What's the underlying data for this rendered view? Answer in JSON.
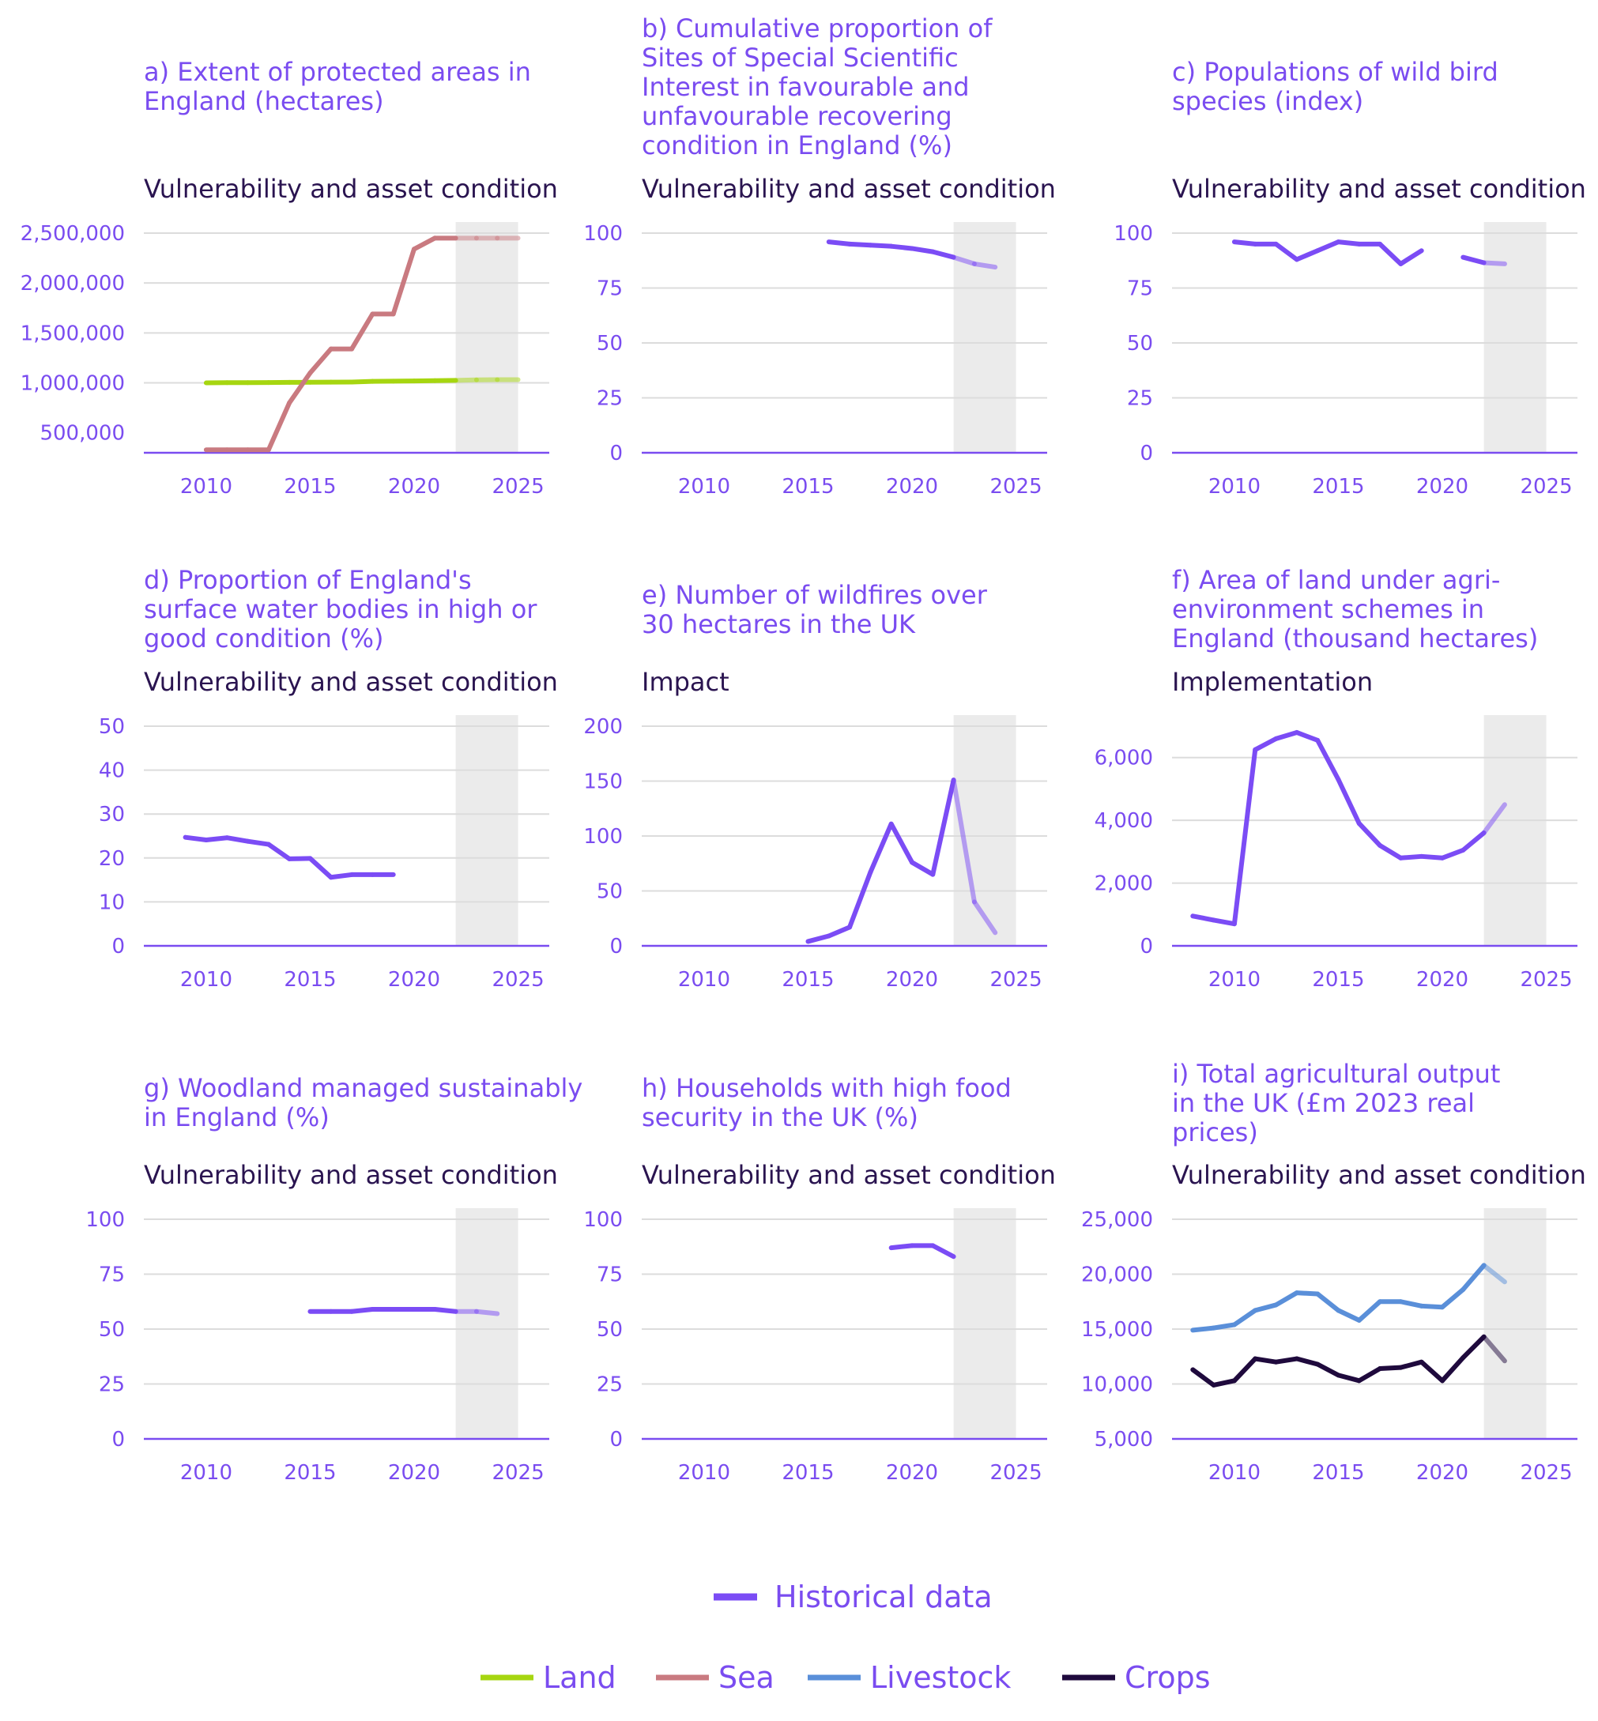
{
  "legend": {
    "historical": {
      "label": "Historical data",
      "color": "#7b4cf5"
    },
    "series": [
      {
        "label": "Land",
        "color": "#a6d610"
      },
      {
        "label": "Sea",
        "color": "#c97a80"
      },
      {
        "label": "Livestock",
        "color": "#5a8fd9"
      },
      {
        "label": "Crops",
        "color": "#1f0a3d"
      }
    ]
  },
  "colors": {
    "primary": "#7b4cf5",
    "axis": "#7a4cf0",
    "grid": "#dcdcdc",
    "projection_band": "#ebebeb"
  },
  "chart_data": [
    {
      "id": "a",
      "type": "line",
      "title": "a) Extent of protected areas in England (hectares)",
      "category": "Vulnerability and asset condition",
      "xlim": [
        2007,
        2026.5
      ],
      "ylim": [
        300000,
        2500000
      ],
      "yticks": [
        500000,
        1000000,
        1500000,
        2000000,
        2500000
      ],
      "ytick_labels": [
        "500,000",
        "1,000,000",
        "1,500,000",
        "2,000,000",
        "2,500,000"
      ],
      "xticks": [
        2010,
        2015,
        2020,
        2025
      ],
      "xtick_labels": [
        "2010",
        "2015",
        "2020",
        "2025"
      ],
      "shade": [
        2022,
        2025
      ],
      "faded_from": 2022,
      "series": [
        {
          "name": "Land",
          "color": "#a6d610",
          "x": [
            2010,
            2011,
            2012,
            2013,
            2014,
            2015,
            2016,
            2017,
            2018,
            2019,
            2020,
            2021,
            2022,
            2023,
            2024,
            2025
          ],
          "y": [
            1000000,
            1002000,
            1002000,
            1003000,
            1005000,
            1006000,
            1007000,
            1008000,
            1015000,
            1017000,
            1019000,
            1022000,
            1025000,
            1030000,
            1032000,
            1032000
          ]
        },
        {
          "name": "Sea",
          "color": "#c97a80",
          "x": [
            2010,
            2011,
            2012,
            2013,
            2014,
            2015,
            2016,
            2017,
            2018,
            2019,
            2020,
            2021,
            2022,
            2023,
            2024,
            2025
          ],
          "y": [
            330000,
            330000,
            330000,
            330000,
            800000,
            1100000,
            1340000,
            1340000,
            1690000,
            1690000,
            2340000,
            2450000,
            2450000,
            2450000,
            2450000,
            2450000
          ]
        }
      ]
    },
    {
      "id": "b",
      "type": "line",
      "title": "b) Cumulative proportion of Sites of Special Scientific Interest in favourable and unfavourable recovering condition in England (%)",
      "category": "Vulnerability and asset condition",
      "xlim": [
        2007,
        2026.5
      ],
      "ylim": [
        0,
        100
      ],
      "yticks": [
        0,
        25,
        50,
        75,
        100
      ],
      "ytick_labels": [
        "0",
        "25",
        "50",
        "75",
        "100"
      ],
      "xticks": [
        2010,
        2015,
        2020,
        2025
      ],
      "xtick_labels": [
        "2010",
        "2015",
        "2020",
        "2025"
      ],
      "shade": [
        2022,
        2025
      ],
      "faded_from": 2022,
      "series": [
        {
          "color": "#7b4cf5",
          "x": [
            2016,
            2017,
            2018,
            2019,
            2020,
            2021,
            2022,
            2023,
            2024
          ],
          "y": [
            96,
            95,
            94.5,
            94,
            93,
            91.5,
            89,
            86,
            84.5
          ]
        }
      ]
    },
    {
      "id": "c",
      "type": "line",
      "title": "c) Populations of wild bird species (index)",
      "category": "Vulnerability and asset condition",
      "xlim": [
        2007,
        2026.5
      ],
      "ylim": [
        0,
        100
      ],
      "yticks": [
        0,
        25,
        50,
        75,
        100
      ],
      "ytick_labels": [
        "0",
        "25",
        "50",
        "75",
        "100"
      ],
      "xticks": [
        2010,
        2015,
        2020,
        2025
      ],
      "xtick_labels": [
        "2010",
        "2015",
        "2020",
        "2025"
      ],
      "shade": [
        2022,
        2025
      ],
      "faded_from": 2022,
      "series": [
        {
          "color": "#7b4cf5",
          "x": [
            2010,
            2011,
            2012,
            2013,
            2014,
            2015,
            2016,
            2017,
            2018,
            2019,
            2020,
            2021,
            2022,
            2023
          ],
          "y": [
            96,
            95,
            95,
            88,
            92,
            96,
            95,
            95,
            86,
            92,
            null,
            89,
            86.5,
            86
          ]
        }
      ]
    },
    {
      "id": "d",
      "type": "line",
      "title": "d) Proportion of England's surface water bodies in high or good condition (%)",
      "category": "Vulnerability and asset condition",
      "xlim": [
        2007,
        2026.5
      ],
      "ylim": [
        0,
        50
      ],
      "yticks": [
        0,
        10,
        20,
        30,
        40,
        50
      ],
      "ytick_labels": [
        "0",
        "10",
        "20",
        "30",
        "40",
        "50"
      ],
      "xticks": [
        2010,
        2015,
        2020,
        2025
      ],
      "xtick_labels": [
        "2010",
        "2015",
        "2020",
        "2025"
      ],
      "shade": [
        2022,
        2025
      ],
      "faded_from": 2022,
      "series": [
        {
          "color": "#7b4cf5",
          "x": [
            2009,
            2010,
            2011,
            2012,
            2013,
            2014,
            2015,
            2016,
            2017,
            2018,
            2019
          ],
          "y": [
            24.7,
            24.1,
            24.6,
            23.8,
            23.1,
            19.8,
            19.9,
            15.6,
            16.2,
            16.2,
            16.2
          ]
        }
      ]
    },
    {
      "id": "e",
      "type": "line",
      "title": "e) Number of wildfires over 30 hectares in the UK",
      "category": "Impact",
      "xlim": [
        2007,
        2026.5
      ],
      "ylim": [
        0,
        200
      ],
      "yticks": [
        0,
        50,
        100,
        150,
        200
      ],
      "ytick_labels": [
        "0",
        "50",
        "100",
        "150",
        "200"
      ],
      "xticks": [
        2010,
        2015,
        2020,
        2025
      ],
      "xtick_labels": [
        "2010",
        "2015",
        "2020",
        "2025"
      ],
      "shade": [
        2022,
        2025
      ],
      "faded_from": 2022,
      "series": [
        {
          "color": "#7b4cf5",
          "x": [
            2015,
            2016,
            2017,
            2018,
            2019,
            2020,
            2021,
            2022,
            2023,
            2024
          ],
          "y": [
            4,
            9,
            17,
            67,
            111,
            76,
            65,
            151,
            40,
            12
          ]
        }
      ]
    },
    {
      "id": "f",
      "type": "line",
      "title": "f) Area of land under agri-environment schemes in England (thousand hectares)",
      "category": "Implementation",
      "xlim": [
        2007,
        2026.5
      ],
      "ylim": [
        0,
        7000
      ],
      "yticks": [
        0,
        2000,
        4000,
        6000
      ],
      "ytick_labels": [
        "0",
        "2,000",
        "4,000",
        "6,000"
      ],
      "xticks": [
        2010,
        2015,
        2020,
        2025
      ],
      "xtick_labels": [
        "2010",
        "2015",
        "2020",
        "2025"
      ],
      "shade": [
        2022,
        2025
      ],
      "faded_from": 2022,
      "series": [
        {
          "color": "#7b4cf5",
          "x": [
            2008,
            2009,
            2010,
            2011,
            2012,
            2013,
            2014,
            2015,
            2016,
            2017,
            2018,
            2019,
            2020,
            2021,
            2022,
            2023
          ],
          "y": [
            950,
            820,
            700,
            6250,
            6600,
            6800,
            6550,
            5300,
            3900,
            3200,
            2800,
            2850,
            2800,
            3050,
            3600,
            4500
          ]
        }
      ]
    },
    {
      "id": "g",
      "type": "line",
      "title": "g) Woodland managed sustainably in England (%)",
      "category": "Vulnerability and asset condition",
      "xlim": [
        2007,
        2026.5
      ],
      "ylim": [
        0,
        100
      ],
      "yticks": [
        0,
        25,
        50,
        75,
        100
      ],
      "ytick_labels": [
        "0",
        "25",
        "50",
        "75",
        "100"
      ],
      "xticks": [
        2010,
        2015,
        2020,
        2025
      ],
      "xtick_labels": [
        "2010",
        "2015",
        "2020",
        "2025"
      ],
      "shade": [
        2022,
        2025
      ],
      "faded_from": 2022,
      "series": [
        {
          "color": "#7b4cf5",
          "x": [
            2015,
            2016,
            2017,
            2018,
            2019,
            2020,
            2021,
            2022,
            2023,
            2024
          ],
          "y": [
            58,
            58,
            58,
            59,
            59,
            59,
            59,
            58,
            58,
            57
          ]
        }
      ]
    },
    {
      "id": "h",
      "type": "line",
      "title": "h) Households with high food security in the UK (%)",
      "category": "Vulnerability and asset condition",
      "xlim": [
        2007,
        2026.5
      ],
      "ylim": [
        0,
        100
      ],
      "yticks": [
        0,
        25,
        50,
        75,
        100
      ],
      "ytick_labels": [
        "0",
        "25",
        "50",
        "75",
        "100"
      ],
      "xticks": [
        2010,
        2015,
        2020,
        2025
      ],
      "xtick_labels": [
        "2010",
        "2015",
        "2020",
        "2025"
      ],
      "shade": [
        2022,
        2025
      ],
      "faded_from": 2022,
      "series": [
        {
          "color": "#7b4cf5",
          "x": [
            2019,
            2020,
            2021,
            2022
          ],
          "y": [
            87,
            88,
            88,
            83
          ]
        }
      ]
    },
    {
      "id": "i",
      "type": "line",
      "title": "i) Total agricultural output in the UK (£m 2023 real prices)",
      "category": "Vulnerability and asset condition",
      "xlim": [
        2007,
        2026.5
      ],
      "ylim": [
        5000,
        25000
      ],
      "yticks": [
        5000,
        10000,
        15000,
        20000,
        25000
      ],
      "ytick_labels": [
        "5,000",
        "10,000",
        "15,000",
        "20,000",
        "25,000"
      ],
      "xticks": [
        2010,
        2015,
        2020,
        2025
      ],
      "xtick_labels": [
        "2010",
        "2015",
        "2020",
        "2025"
      ],
      "shade": [
        2022,
        2025
      ],
      "faded_from": 2022,
      "series": [
        {
          "name": "Livestock",
          "color": "#5a8fd9",
          "x": [
            2008,
            2009,
            2010,
            2011,
            2012,
            2013,
            2014,
            2015,
            2016,
            2017,
            2018,
            2019,
            2020,
            2021,
            2022,
            2023
          ],
          "y": [
            14900,
            15100,
            15400,
            16700,
            17200,
            18300,
            18200,
            16700,
            15800,
            17500,
            17500,
            17100,
            17000,
            18600,
            20800,
            19300
          ]
        },
        {
          "name": "Crops",
          "color": "#1f0a3d",
          "x": [
            2008,
            2009,
            2010,
            2011,
            2012,
            2013,
            2014,
            2015,
            2016,
            2017,
            2018,
            2019,
            2020,
            2021,
            2022,
            2023
          ],
          "y": [
            11300,
            9900,
            10300,
            12300,
            12000,
            12300,
            11800,
            10800,
            10300,
            11400,
            11500,
            12000,
            10300,
            12400,
            14300,
            12100
          ]
        }
      ]
    }
  ]
}
